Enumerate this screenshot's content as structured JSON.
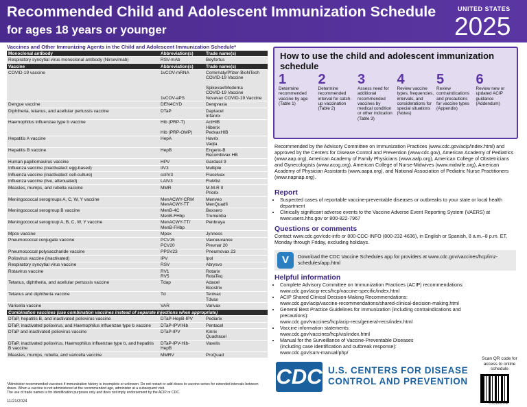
{
  "header": {
    "title": "Recommended Child and Adolescent Immunization Schedule",
    "subtitle": "for ages 18 years or younger",
    "country": "UNITED STATES",
    "year": "2025"
  },
  "table": {
    "title": "Vaccines and Other Immunizing Agents in the Child and Adolescent Immunization Schedule*",
    "sections": [
      {
        "header": [
          "Monoclonal antibody",
          "Abbreviation(s)",
          "Trade name(s)"
        ],
        "rows": [
          [
            "Respiratory syncytial virus monoclonal antibody (Nirsevimab)",
            "RSV-mAb",
            "Beyfortus"
          ]
        ]
      },
      {
        "header": [
          "Vaccine",
          "Abbreviation(s)",
          "Trade name(s)"
        ],
        "rows": [
          [
            "COVID-19 vaccine",
            "1vCOV-mRNA\n\n\n\n\n1vCOV-aPS",
            "Comirnaty/Pfizer-BioNTech\nCOVID-19 Vaccine\n\nSpikevax/Moderna\nCOVID-19 Vaccine\nNovavax COVID-19 Vaccine"
          ],
          [
            "Dengue vaccine",
            "DEN4CYD",
            "Dengvaxia"
          ],
          [
            "Diphtheria, tetanus, and acellular pertussis vaccine",
            "DTaP",
            "Daptacel\nInfanrix"
          ],
          [
            "Haemophilus influenzae type b vaccine",
            "Hib (PRP-T)\n\nHib (PRP-OMP)",
            "ActHIB\nHiberix\nPedvaxHIB"
          ],
          [
            "Hepatitis A vaccine",
            "HepA",
            "Havrix\nVaqta"
          ],
          [
            "Hepatitis B vaccine",
            "HepB",
            "Engerix-B\nRecombivax HB"
          ],
          [
            "Human papillomavirus vaccine",
            "HPV",
            "Gardasil 9"
          ],
          [
            "Influenza vaccine (inactivated: egg-based)",
            "IIV3",
            "Multiple"
          ],
          [
            "Influenza vaccine (inactivated: cell-culture)",
            "ccIIV3",
            "Flucelvax"
          ],
          [
            "Influenza vaccine (live, attenuated)",
            "LAIV3",
            "FluMist"
          ],
          [
            "Measles, mumps, and rubella vaccine",
            "MMR",
            "M-M-R II\nPriorix"
          ],
          [
            "Meningococcal serogroups A, C, W, Y vaccine",
            "MenACWY-CRM\nMenACWY-TT",
            "Menveo\nMenQuadfi"
          ],
          [
            "Meningococcal serogroup B vaccine",
            "MenB-4C\nMenB-FHbp",
            "Bexsero\nTrumenba"
          ],
          [
            "Meningococcal serogroup A, B, C, W, Y vaccine",
            "MenACWY-TT/\nMenB-FHbp",
            "Penbraya"
          ],
          [
            "Mpox vaccine",
            "Mpox",
            "Jynneos"
          ],
          [
            "Pneumococcal conjugate vaccine",
            "PCV15\nPCV20",
            "Vaxneuvance\nPrevnar 20"
          ],
          [
            "Pneumococcal polysaccharide vaccine",
            "PPSV23",
            "Pneumovax 23"
          ],
          [
            "Poliovirus vaccine (inactivated)",
            "IPV",
            "Ipol"
          ],
          [
            "Respiratory syncytial virus vaccine",
            "RSV",
            "Abrysvo"
          ],
          [
            "Rotavirus vaccine",
            "RV1\nRV5",
            "Rotarix\nRotaTeq"
          ],
          [
            "Tetanus, diphtheria, and acellular pertussis vaccine",
            "Tdap",
            "Adacel\nBoostrix"
          ],
          [
            "Tetanus and diphtheria vaccine",
            "Td",
            "Tenivac\nTdvax"
          ],
          [
            "Varicella vaccine",
            "VAR",
            "Varivax"
          ]
        ]
      },
      {
        "header": [
          "Combination vaccines (use combination vaccines instead of separate injections when appropriate)"
        ],
        "rows": [
          [
            "DTaP, hepatitis B, and inactivated poliovirus vaccine",
            "DTaP-HepB-IPV",
            "Pediarix"
          ],
          [
            "DTaP, inactivated poliovirus, and Haemophilus influenzae type b vaccine",
            "DTaP-IPV/Hib",
            "Pentacel"
          ],
          [
            "DTaP and inactivated poliovirus vaccine",
            "DTaP-IPV",
            "Kinrix\nQuadracel"
          ],
          [
            "DTaP, inactivated poliovirus, Haemophilus influenzae type b, and hepatitis B vaccine",
            "DTaP-IPV-Hib-\nHepB",
            "Vaxelis"
          ],
          [
            "Measles, mumps, rubella, and varicella vaccine",
            "MMRV",
            "ProQuad"
          ]
        ]
      }
    ],
    "footnote": "*Administer recommended vaccines if immunization history is incomplete or unknown. Do not restart or add doses to vaccine series for extended intervals between doses. When a vaccine is not administered at the recommended age, administer at a subsequent visit.\nThe use of trade names is for identification purposes only and does not imply endorsement by the ACIP or CDC.",
    "date": "11/21/2024"
  },
  "how_to": {
    "title": "How to use the child and adolescent immunization schedule",
    "steps": [
      {
        "number": "1",
        "text": "Determine recommended vaccine by age (Table 1)"
      },
      {
        "number": "2",
        "text": "Determine recommended interval for catch-up vaccination (Table 2)"
      },
      {
        "number": "3",
        "text": "Assess need for additional recommended vaccines by medical condition or other indication (Table 3)"
      },
      {
        "number": "4",
        "text": "Review vaccine types, frequencies, intervals, and considerations for special situations (Notes)"
      },
      {
        "number": "5",
        "text": "Review contraindications and precautions for vaccine types (Appendix)"
      },
      {
        "number": "6",
        "text": "Review new or updated ACIP guidance (Addendum)"
      }
    ]
  },
  "recommended": "Recommended by the Advisory Committee on Immunization Practices (www.cdc.gov/acip/index.html) and approved by the Centers for Disease Control and Prevention (www.cdc.gov), American Academy of Pediatrics (www.aap.org), American Academy of Family Physicians (www.aafp.org), American College of Obstetricians and Gynecologists (www.acog.org), American College of Nurse-Midwives (www.midwife.org), American Academy of Physician Assistants (www.aapa.org), and National Association of Pediatric Nurse Practitioners (www.napnap.org).",
  "report": {
    "heading": "Report",
    "items": [
      "Suspected cases of reportable vaccine-preventable diseases or outbreaks to your state or local health department",
      "Clinically significant adverse events to the Vaccine Adverse Event Reporting System (VAERS) at www.vaers.hhs.gov or 800-822-7967"
    ]
  },
  "questions": {
    "heading": "Questions or comments",
    "text": "Contact www.cdc.gov/cdc-info or 800-CDC-INFO (800-232-4636), in English or Spanish, 8 a.m.–8 p.m. ET, Monday through Friday, excluding holidays."
  },
  "app": "Download the CDC Vaccine Schedules app for providers at www.cdc.gov/vaccines/hcp/imz-schedules/app.html",
  "helpful": {
    "heading": "Helpful information",
    "items": [
      "Complete Advisory Committee on Immunization Practices (ACIP) recommendations:\nwww.cdc.gov/acip-recs/hcp/vaccine-specific/index.html",
      "ACIP Shared Clinical Decision-Making Recommendations:\nwww.cdc.gov/acip/vaccine-recommendations/shared-clinical-decision-making.html",
      "General Best Practice Guidelines for Immunization (including contraindications and precautions):\nwww.cdc.gov/vaccines/hcp/acip-recs/general-recs/index.html",
      "Vaccine information statements:\nwww.cdc.gov/vaccines/hcp/vis/index.html",
      "Manual for the Surveillance of Vaccine-Preventable Diseases\n(including case identification and outbreak response):\nwww.cdc.gov/surv-manual/php/"
    ]
  },
  "logo": {
    "mark": "CDC",
    "name": "U.S. CENTERS FOR DISEASE\nCONTROL AND PREVENTION"
  },
  "qr_caption": "Scan QR code for access to online schedule",
  "code": "CS310020-E"
}
